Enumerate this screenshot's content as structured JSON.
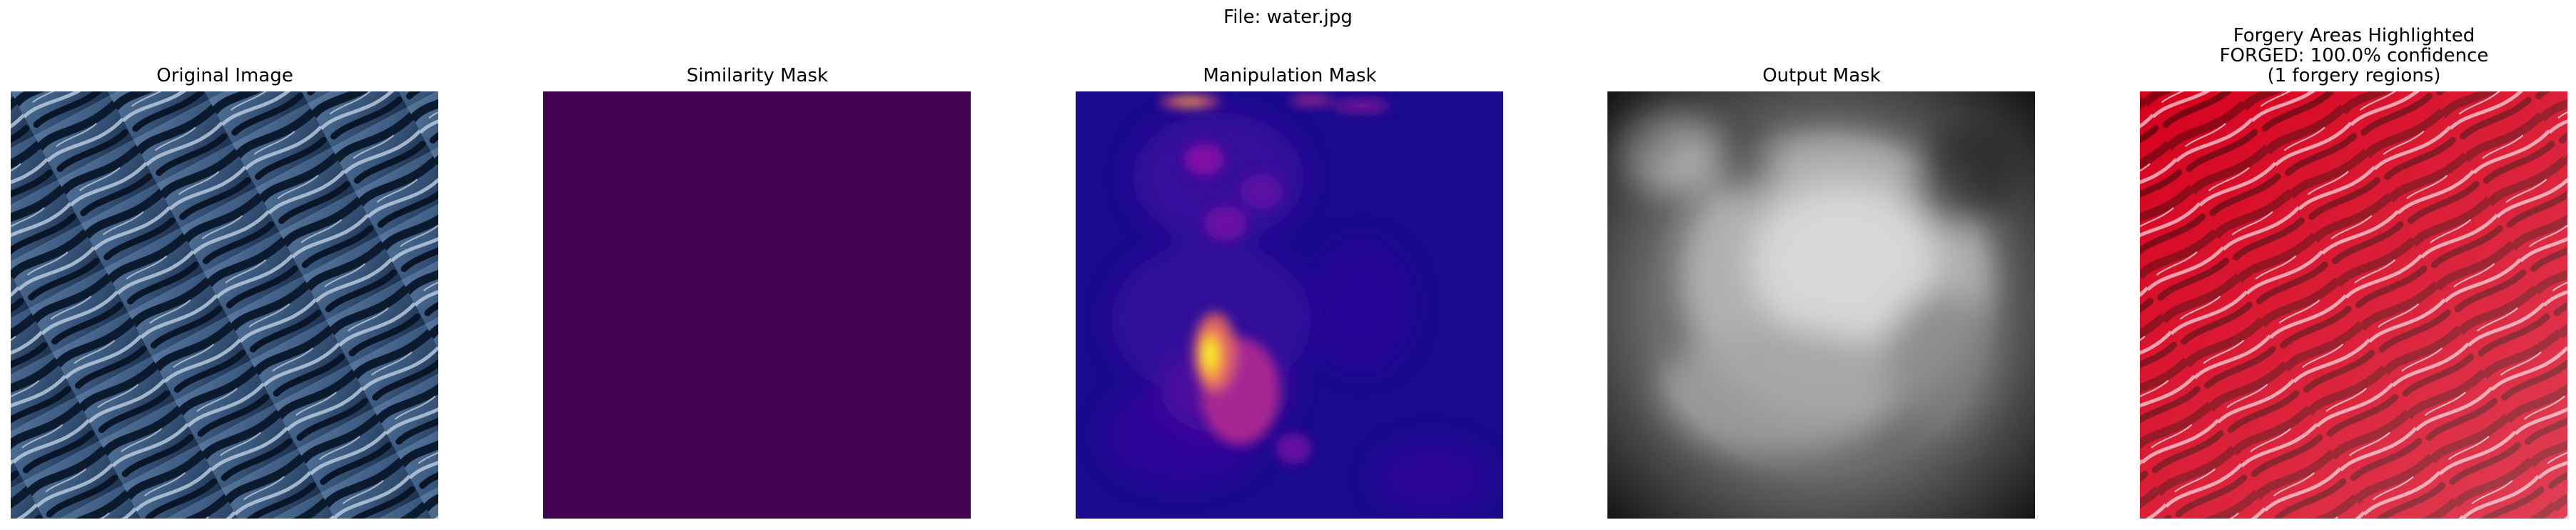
{
  "figure": {
    "suptitle": "File: water.jpg"
  },
  "panels": [
    {
      "title": "Original Image"
    },
    {
      "title": "Similarity Mask"
    },
    {
      "title": "Manipulation Mask"
    },
    {
      "title": "Output Mask"
    },
    {
      "title_lines": [
        "Forgery Areas Highlighted",
        "FORGED: 100.0% confidence",
        "(1 forgery regions)"
      ]
    }
  ],
  "colors": {
    "similarity_mask": "#440154",
    "manipulation_base": "#1a0a8e",
    "output_base": "#6a6a6a",
    "highlight_red": "#d6001c",
    "water_dark": "#0d1b2e",
    "water_light": "#c8d8ea"
  }
}
